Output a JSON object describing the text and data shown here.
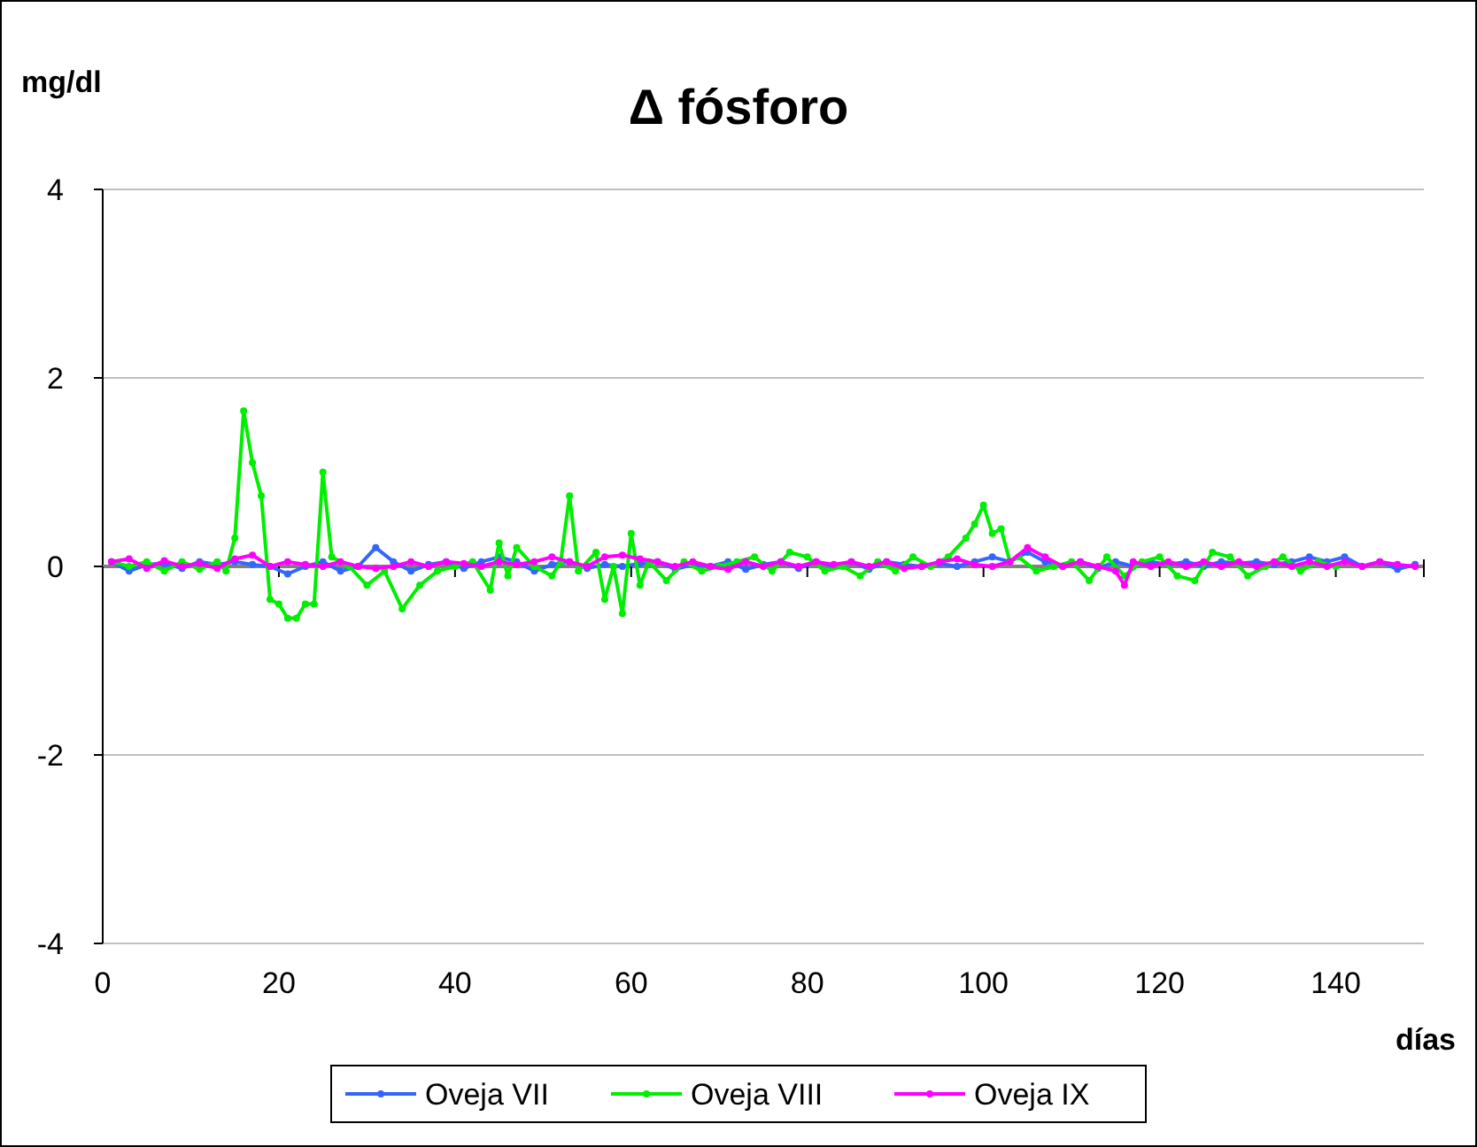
{
  "chart_data": {
    "type": "line",
    "title": "Δ fósforo",
    "ylabel": "mg/dl",
    "xlabel": "días",
    "xlim": [
      0,
      150
    ],
    "xticks": [
      0,
      20,
      40,
      60,
      80,
      100,
      120,
      140
    ],
    "ylim": [
      -4,
      4
    ],
    "yticks": [
      -4,
      -2,
      0,
      2,
      4
    ],
    "grid": "y",
    "legend": "bottom",
    "marker": "circle",
    "line_style": "solid",
    "series": [
      {
        "name": "Oveja VII",
        "color": "#3366ff",
        "x": [
          1,
          3,
          5,
          7,
          9,
          11,
          13,
          15,
          17,
          19,
          21,
          23,
          25,
          27,
          29,
          31,
          33,
          35,
          37,
          39,
          41,
          43,
          45,
          47,
          49,
          51,
          53,
          55,
          57,
          59,
          61,
          63,
          65,
          67,
          69,
          71,
          73,
          75,
          77,
          79,
          81,
          83,
          85,
          87,
          89,
          91,
          93,
          95,
          97,
          99,
          101,
          103,
          105,
          107,
          109,
          111,
          113,
          115,
          117,
          119,
          121,
          123,
          125,
          127,
          129,
          131,
          133,
          135,
          137,
          139,
          141,
          143,
          145,
          147,
          149
        ],
        "values": [
          0.05,
          -0.05,
          0.02,
          0.03,
          -0.02,
          0.05,
          0.02,
          0.05,
          0.02,
          0.0,
          -0.08,
          0.0,
          0.05,
          -0.05,
          0.0,
          0.2,
          0.05,
          -0.05,
          0.02,
          0.05,
          -0.02,
          0.05,
          0.1,
          0.05,
          -0.05,
          0.02,
          0.05,
          -0.02,
          0.02,
          0.0,
          0.03,
          0.05,
          -0.03,
          0.02,
          0.0,
          0.05,
          -0.03,
          0.02,
          0.05,
          -0.02,
          0.05,
          0.0,
          0.05,
          -0.03,
          0.05,
          0.02,
          0.0,
          0.03,
          0.0,
          0.05,
          0.1,
          0.05,
          0.15,
          0.05,
          0.0,
          0.05,
          -0.02,
          0.05,
          0.0,
          0.05,
          0.02,
          0.05,
          0.0,
          0.05,
          0.03,
          0.05,
          0.02,
          0.05,
          0.1,
          0.05,
          0.1,
          0.0,
          0.05,
          -0.03,
          0.02
        ]
      },
      {
        "name": "Oveja VIII",
        "color": "#00ee00",
        "x": [
          1,
          3,
          5,
          7,
          9,
          11,
          13,
          14,
          15,
          16,
          17,
          18,
          19,
          20,
          21,
          22,
          23,
          24,
          25,
          26,
          28,
          30,
          32,
          34,
          36,
          38,
          40,
          42,
          44,
          45,
          46,
          47,
          49,
          51,
          52,
          53,
          54,
          56,
          57,
          58,
          59,
          60,
          61,
          62,
          64,
          66,
          68,
          70,
          72,
          74,
          76,
          78,
          80,
          82,
          84,
          86,
          88,
          90,
          92,
          94,
          96,
          98,
          99,
          100,
          101,
          102,
          103,
          104,
          106,
          108,
          110,
          112,
          114,
          116,
          118,
          120,
          122,
          124,
          126,
          128,
          130,
          132,
          134,
          136,
          138,
          140
        ],
        "values": [
          0.05,
          0.0,
          0.05,
          -0.05,
          0.05,
          -0.03,
          0.05,
          -0.05,
          0.3,
          1.65,
          1.1,
          0.75,
          -0.35,
          -0.4,
          -0.55,
          -0.55,
          -0.4,
          -0.4,
          1.0,
          0.1,
          0.0,
          -0.2,
          -0.05,
          -0.45,
          -0.2,
          -0.05,
          0.0,
          0.05,
          -0.25,
          0.25,
          -0.1,
          0.2,
          0.0,
          -0.1,
          0.05,
          0.75,
          -0.05,
          0.15,
          -0.35,
          0.0,
          -0.5,
          0.35,
          -0.2,
          0.05,
          -0.15,
          0.05,
          -0.05,
          0.0,
          0.05,
          0.1,
          -0.05,
          0.15,
          0.1,
          -0.05,
          0.0,
          -0.1,
          0.05,
          -0.05,
          0.1,
          0.0,
          0.1,
          0.3,
          0.45,
          0.65,
          0.35,
          0.4,
          0.05,
          0.1,
          -0.05,
          0.0,
          0.05,
          -0.15,
          0.1,
          -0.1,
          0.05,
          0.1,
          -0.1,
          -0.15,
          0.15,
          0.1,
          -0.1,
          0.0,
          0.1,
          -0.05,
          0.05,
          0.0
        ]
      },
      {
        "name": "Oveja IX",
        "color": "#ff00ff",
        "x": [
          1,
          3,
          5,
          7,
          9,
          11,
          13,
          15,
          17,
          19,
          21,
          23,
          25,
          27,
          29,
          31,
          33,
          35,
          37,
          39,
          41,
          43,
          45,
          47,
          49,
          51,
          53,
          55,
          57,
          59,
          61,
          63,
          65,
          67,
          69,
          71,
          73,
          75,
          77,
          79,
          81,
          83,
          85,
          87,
          89,
          91,
          93,
          95,
          97,
          99,
          101,
          103,
          105,
          107,
          109,
          111,
          113,
          115,
          116,
          117,
          119,
          121,
          123,
          125,
          127,
          129,
          131,
          133,
          135,
          137,
          139,
          141,
          143,
          145,
          147,
          149
        ],
        "values": [
          0.05,
          0.08,
          -0.02,
          0.06,
          0.0,
          0.03,
          -0.02,
          0.08,
          0.12,
          0.0,
          0.05,
          0.02,
          0.0,
          0.05,
          0.0,
          -0.02,
          0.0,
          0.05,
          0.0,
          0.05,
          0.03,
          0.0,
          0.05,
          0.02,
          0.05,
          0.1,
          0.05,
          0.0,
          0.1,
          0.12,
          0.08,
          0.05,
          0.0,
          0.05,
          0.0,
          -0.03,
          0.05,
          0.0,
          0.05,
          0.0,
          0.05,
          0.02,
          0.05,
          0.0,
          0.05,
          -0.02,
          0.0,
          0.05,
          0.08,
          0.02,
          0.0,
          0.05,
          0.2,
          0.1,
          0.0,
          0.05,
          0.0,
          -0.05,
          -0.2,
          0.05,
          0.0,
          0.05,
          0.0,
          0.05,
          0.0,
          0.05,
          0.0,
          0.05,
          0.0,
          0.05,
          0.0,
          0.05,
          0.0,
          0.05,
          0.02,
          0.0
        ]
      }
    ]
  }
}
